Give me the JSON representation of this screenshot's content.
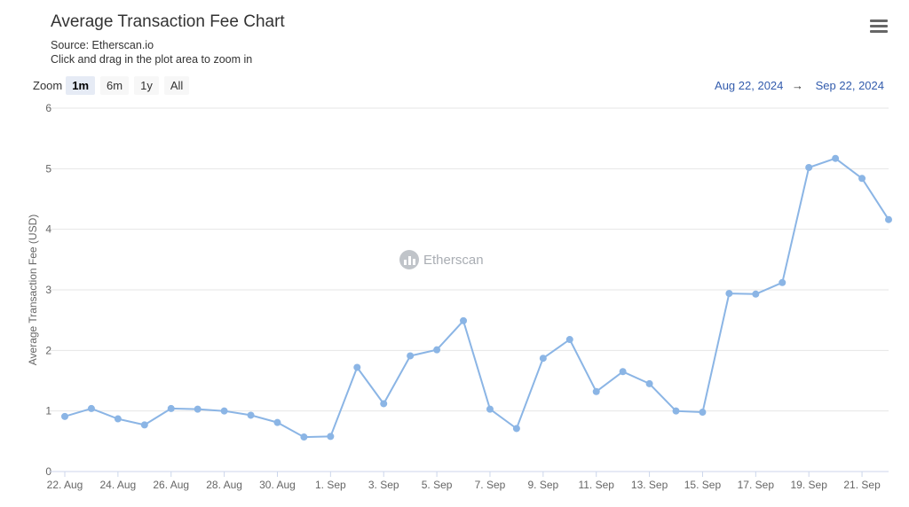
{
  "header": {
    "title": "Average Transaction Fee Chart",
    "source": "Source: Etherscan.io",
    "hint": "Click and drag in the plot area to zoom in"
  },
  "zoom": {
    "label": "Zoom",
    "buttons": [
      "1m",
      "6m",
      "1y",
      "All"
    ],
    "active": "1m"
  },
  "range": {
    "from": "Aug 22, 2024",
    "arrow": "→",
    "to": "Sep 22, 2024"
  },
  "watermark": {
    "text": "Etherscan",
    "icon": "etherscan-logo-icon"
  },
  "menu": {
    "icon": "hamburger-menu-icon"
  },
  "chart_data": {
    "type": "line",
    "title": "Average Transaction Fee Chart",
    "ylabel": "Average Transaction Fee (USD)",
    "xlabel": "",
    "ylim": [
      0,
      6
    ],
    "yticks": [
      0,
      1,
      2,
      3,
      4,
      5,
      6
    ],
    "grid": true,
    "color": "#8bb5e5",
    "x": [
      "2024-08-22",
      "2024-08-23",
      "2024-08-24",
      "2024-08-25",
      "2024-08-26",
      "2024-08-27",
      "2024-08-28",
      "2024-08-29",
      "2024-08-30",
      "2024-08-31",
      "2024-09-01",
      "2024-09-02",
      "2024-09-03",
      "2024-09-04",
      "2024-09-05",
      "2024-09-06",
      "2024-09-07",
      "2024-09-08",
      "2024-09-09",
      "2024-09-10",
      "2024-09-11",
      "2024-09-12",
      "2024-09-13",
      "2024-09-14",
      "2024-09-15",
      "2024-09-16",
      "2024-09-17",
      "2024-09-18",
      "2024-09-19",
      "2024-09-20",
      "2024-09-21",
      "2024-09-22"
    ],
    "xtick_labels": [
      "22. Aug",
      "24. Aug",
      "26. Aug",
      "28. Aug",
      "30. Aug",
      "1. Sep",
      "3. Sep",
      "5. Sep",
      "7. Sep",
      "9. Sep",
      "11. Sep",
      "13. Sep",
      "15. Sep",
      "17. Sep",
      "19. Sep",
      "21. Sep"
    ],
    "values": [
      0.91,
      1.04,
      0.87,
      0.77,
      1.04,
      1.03,
      1.0,
      0.93,
      0.81,
      0.57,
      0.58,
      1.72,
      1.12,
      1.91,
      2.01,
      2.49,
      1.03,
      0.71,
      1.87,
      2.18,
      1.32,
      1.65,
      1.45,
      1.0,
      0.98,
      2.94,
      2.93,
      3.12,
      5.02,
      5.17,
      4.84,
      4.16
    ]
  }
}
